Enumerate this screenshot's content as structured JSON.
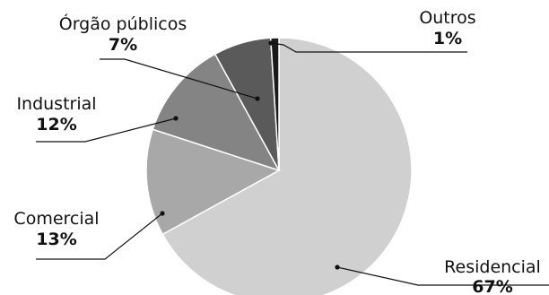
{
  "chart_data": {
    "type": "pie",
    "title": "",
    "start_angle_deg": 0,
    "direction": "clockwise",
    "slices": [
      {
        "label": "Residencial",
        "value": 67,
        "value_label": "67%",
        "color": "#d0d0d0"
      },
      {
        "label": "Comercial",
        "value": 13,
        "value_label": "13%",
        "color": "#a8a8a8"
      },
      {
        "label": "Industrial",
        "value": 12,
        "value_label": "12%",
        "color": "#848484"
      },
      {
        "label": "Órgão públicos",
        "value": 7,
        "value_label": "7%",
        "color": "#5a5a5a"
      },
      {
        "label": "Outros",
        "value": 1,
        "value_label": "1%",
        "color": "#1a1a1a"
      }
    ]
  }
}
